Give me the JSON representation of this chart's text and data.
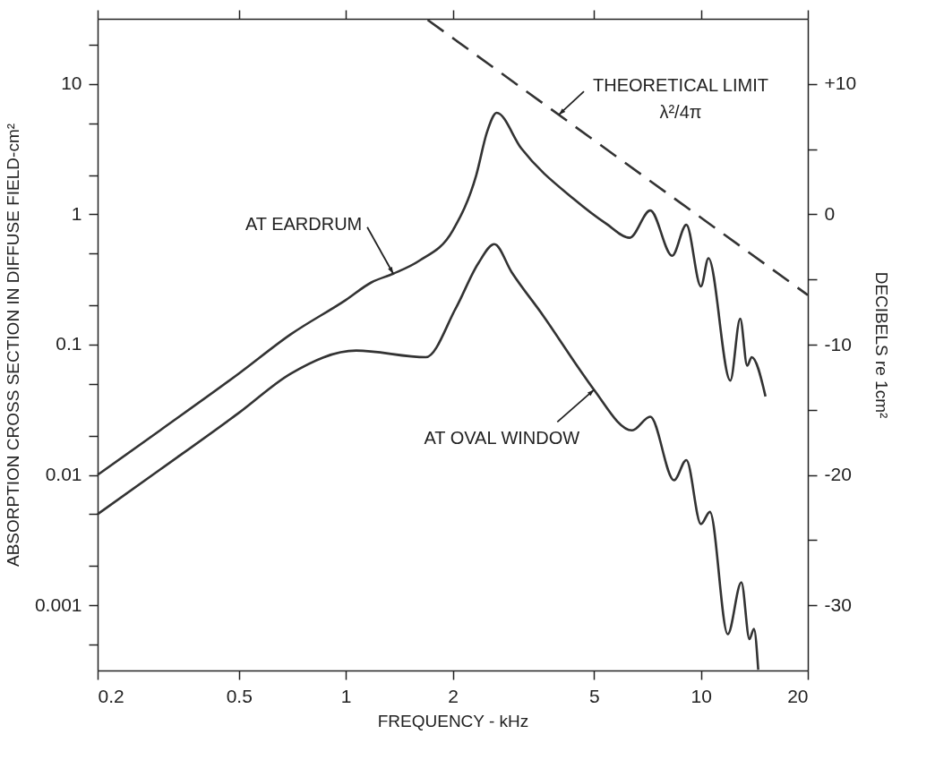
{
  "chart_data": {
    "type": "line",
    "xlabel": "FREQUENCY - kHz",
    "ylabel": "ABSORPTION CROSS SECTION IN DIFFUSE FIELD-cm²",
    "y2label": "DECIBELS re 1cm²",
    "log": "xy",
    "grid": false,
    "marker": "none",
    "xlim": [
      0.2,
      20
    ],
    "xticks": [
      0.2,
      0.5,
      1,
      2,
      5,
      10,
      20
    ],
    "ylim": [
      0.000316,
      31.6
    ],
    "yticks": [
      {
        "value": 20,
        "label": null
      },
      10,
      {
        "value": 5,
        "label": null
      },
      {
        "value": 2,
        "label": null
      },
      1,
      {
        "value": 0.5,
        "label": null
      },
      {
        "value": 0.2,
        "label": null
      },
      0.1,
      {
        "value": 0.05,
        "label": null
      },
      {
        "value": 0.02,
        "label": null
      },
      0.01,
      {
        "value": 0.005,
        "label": null
      },
      {
        "value": 0.002,
        "label": null
      },
      0.001,
      {
        "value": 0.0005,
        "label": null
      }
    ],
    "y2lim": [
      -35,
      15
    ],
    "y2ticks": [
      {
        "value": 10,
        "label": "+10"
      },
      {
        "value": 5,
        "label": null
      },
      0,
      {
        "value": -5,
        "label": null
      },
      -10,
      {
        "value": -15,
        "label": null
      },
      -20,
      {
        "value": -25,
        "label": null
      },
      -30
    ],
    "series": [
      {
        "color": "#333333",
        "line_style": "solid",
        "x": [
          0.2,
          0.3,
          0.5,
          0.7,
          1,
          1.18,
          1.36,
          1.61,
          2,
          2.33,
          2.5,
          2.66,
          3.12,
          4.4,
          5.4,
          6.3,
          7.2,
          8.3,
          9.1,
          10.0,
          10.5,
          12.1,
          12.9,
          13.5,
          13.9,
          15.2
        ],
        "values": [
          0.01,
          0.022,
          0.06,
          0.12,
          0.22,
          0.3,
          0.35,
          0.44,
          0.75,
          2.0,
          4.3,
          6.0,
          3.2,
          1.3,
          0.85,
          0.66,
          1.07,
          0.48,
          0.83,
          0.28,
          0.46,
          0.053,
          0.158,
          0.069,
          0.08,
          0.04
        ]
      },
      {
        "color": "#333333",
        "line_style": "solid",
        "x": [
          0.2,
          0.3,
          0.5,
          0.7,
          1.07,
          1.68,
          2.04,
          2.36,
          2.62,
          2.93,
          3.6,
          4.6,
          5.0,
          6.4,
          7.2,
          8.4,
          9.1,
          10.0,
          10.6,
          11.9,
          13.0,
          13.7,
          14.1,
          14.5
        ],
        "values": [
          0.005,
          0.011,
          0.03,
          0.06,
          0.09,
          0.08,
          0.19,
          0.42,
          0.59,
          0.36,
          0.166,
          0.062,
          0.045,
          0.022,
          0.028,
          0.0091,
          0.013,
          0.0042,
          0.0052,
          0.0006,
          0.0015,
          0.00055,
          0.00066,
          0.00032
        ]
      },
      {
        "color": "#333333",
        "line_style": "dashed",
        "x": [
          1.7,
          20
        ],
        "values": [
          31,
          0.24
        ]
      }
    ],
    "annotations": [
      {
        "text": "AT EARDRUM",
        "x": 1.36,
        "y": 0.35
      },
      {
        "text": "AT OVAL WINDOW",
        "x": 5.0,
        "y": 0.045
      },
      {
        "text": "THEORETICAL LIMIT\nλ²/4π",
        "x": 3.98,
        "y": 5.8
      }
    ]
  }
}
